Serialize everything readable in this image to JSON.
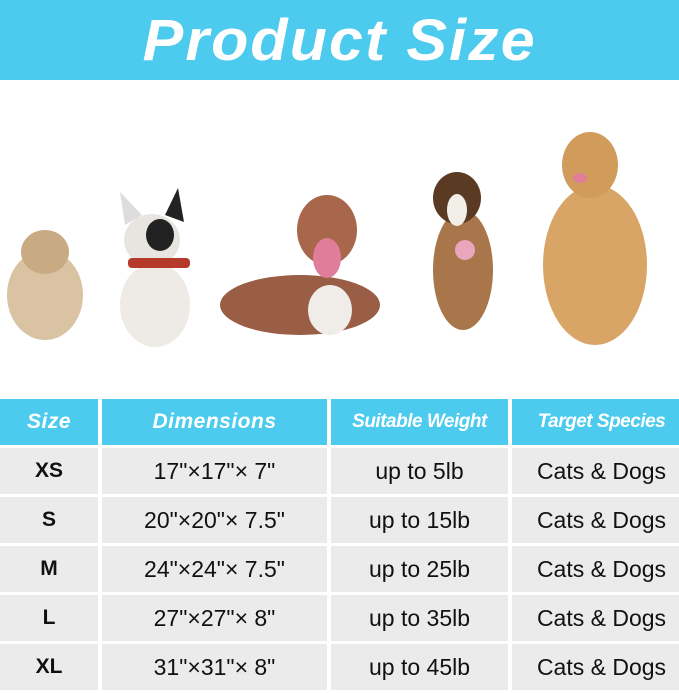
{
  "banner": {
    "title": "Product Size"
  },
  "colors": {
    "accent": "#4ccbef",
    "cell": "#ebebeb"
  },
  "images": [
    "havanese-dog",
    "french-bulldog",
    "pitbull-dog",
    "australian-shepherd-dog",
    "golden-retriever-dog"
  ],
  "table": {
    "headers": [
      "Size",
      "Dimensions",
      "Suitable Weight",
      "Target Species"
    ],
    "rows": [
      [
        "XS",
        "17\"×17\"× 7\"",
        "up to 5lb",
        "Cats & Dogs"
      ],
      [
        "S",
        "20\"×20\"× 7.5\"",
        "up to 15lb",
        "Cats & Dogs"
      ],
      [
        "M",
        "24\"×24\"× 7.5\"",
        "up to 25lb",
        "Cats & Dogs"
      ],
      [
        "L",
        "27\"×27\"× 8\"",
        "up to 35lb",
        "Cats & Dogs"
      ],
      [
        "XL",
        "31\"×31\"× 8\"",
        "up to 45lb",
        "Cats & Dogs"
      ]
    ]
  }
}
